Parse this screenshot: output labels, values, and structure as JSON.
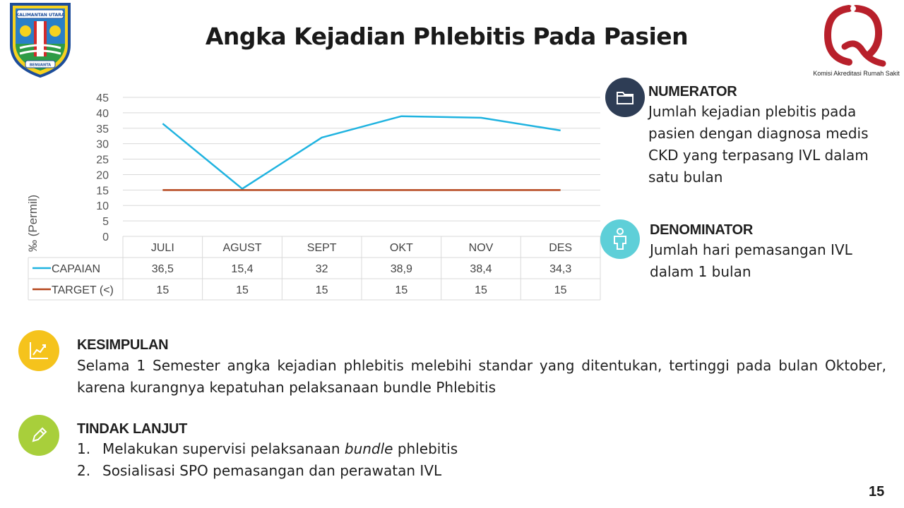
{
  "title": "Angka Kejadian Phlebitis Pada Pasien",
  "logos": {
    "left_crest_banner": "KALIMANTAN UTARA",
    "left_crest_ribbon": "BENUANTA",
    "right_logo_caption": "Komisi Akreditasi Rumah Sakit"
  },
  "colors": {
    "capaian": "#1fb3e0",
    "target": "#b5451b",
    "numerator_circle": "#2e3d55",
    "denominator_circle": "#5ecfd8",
    "kesimpulan_circle": "#f5c31c",
    "tindak_circle": "#a8cf3b"
  },
  "chart_data": {
    "type": "line",
    "ylabel": "‰ (Permil)",
    "xlabel": "",
    "ylim": [
      0,
      45
    ],
    "yticks": [
      "0",
      "5",
      "10",
      "15",
      "20",
      "25",
      "30",
      "35",
      "40",
      "45"
    ],
    "categories": [
      "JULI",
      "AGUST",
      "SEPT",
      "OKT",
      "NOV",
      "DES"
    ],
    "grid": true,
    "series": [
      {
        "name": "CAPAIAN",
        "values": [
          36.5,
          15.4,
          32,
          38.9,
          38.4,
          34.3
        ],
        "labels": [
          "36,5",
          "15,4",
          "32",
          "38,9",
          "38,4",
          "34,3"
        ]
      },
      {
        "name": "TARGET (<)",
        "values": [
          15,
          15,
          15,
          15,
          15,
          15
        ],
        "labels": [
          "15",
          "15",
          "15",
          "15",
          "15",
          "15"
        ]
      }
    ]
  },
  "numerator": {
    "heading": "NUMERATOR",
    "lines": [
      "Jumlah kejadian plebitis pada",
      "pasien dengan diagnosa medis",
      "CKD yang terpasang IVL dalam",
      "satu bulan"
    ],
    "icon": "folder-icon"
  },
  "denominator": {
    "heading": "DENOMINATOR",
    "lines": [
      "Jumlah hari pemasangan  IVL",
      "dalam 1 bulan"
    ],
    "icon": "person-icon"
  },
  "kesimpulan": {
    "heading": "KESIMPULAN",
    "text": "Selama 1 Semester angka kejadian phlebitis melebihi standar yang ditentukan, tertinggi pada bulan Oktober, karena kurangnya kepatuhan pelaksanaan bundle Phlebitis",
    "icon": "chart-growth-icon"
  },
  "tindak_lanjut": {
    "heading": "TINDAK LANJUT",
    "items": [
      {
        "num": "1.",
        "pre": "Melakukan supervisi pelaksanaan ",
        "em": "bundle",
        "post": " phlebitis"
      },
      {
        "num": "2.",
        "pre": "Sosialisasi SPO pemasangan dan perawatan IVL",
        "em": "",
        "post": ""
      }
    ],
    "icon": "pencil-icon"
  },
  "page_number": "15"
}
